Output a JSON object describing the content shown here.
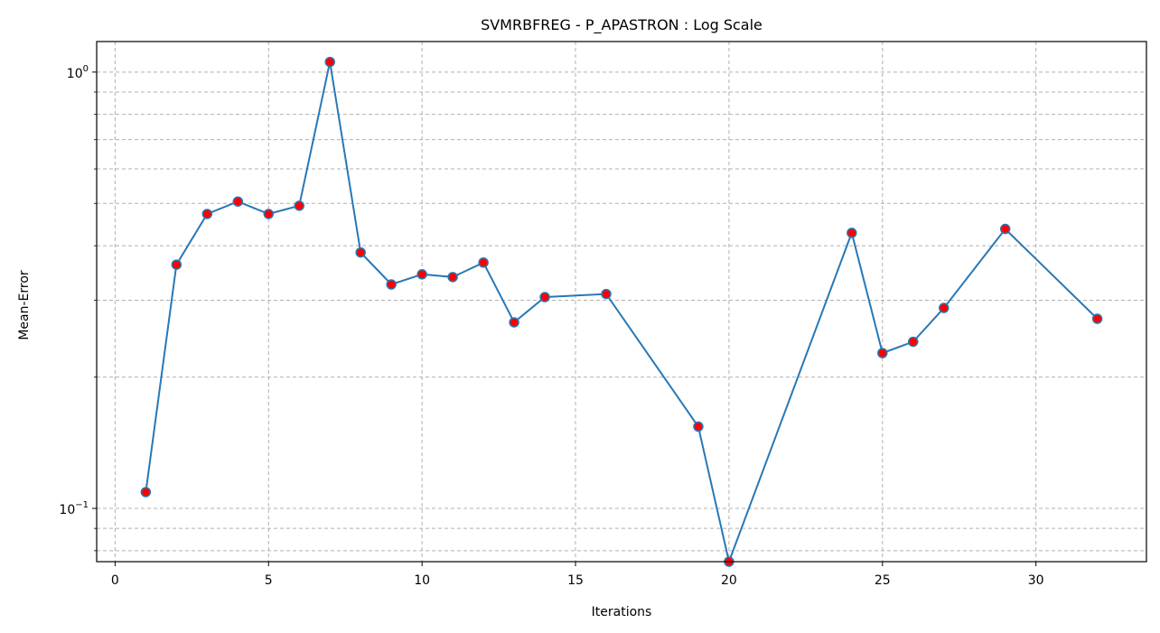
{
  "chart_data": {
    "type": "line",
    "title": "SVMRBFREG - P_APASTRON : Log Scale",
    "xlabel": "Iterations",
    "ylabel": "Mean-Error",
    "yscale": "log",
    "xlim": [
      -0.6,
      33.6
    ],
    "ylim": [
      0.0755,
      1.175
    ],
    "grid": true,
    "line_color": "#2878b5",
    "marker_color": "#ff0000",
    "marker_edge_color": "#2878b5",
    "x_ticks": [
      0,
      5,
      10,
      15,
      20,
      25,
      30
    ],
    "x_tick_labels": [
      "0",
      "5",
      "10",
      "15",
      "20",
      "25",
      "30"
    ],
    "y_major_ticks": [
      0.1,
      1
    ],
    "y_major_labels": [
      "10",
      "10"
    ],
    "y_major_label_exponents": [
      "−1",
      "0"
    ],
    "y_minor_ticks": [
      0.08,
      0.09,
      0.2,
      0.3,
      0.4,
      0.5,
      0.6,
      0.7,
      0.8,
      0.9
    ],
    "series": [
      {
        "x": [
          1,
          2,
          3,
          4,
          5,
          6,
          7,
          8,
          9,
          10,
          11,
          12,
          13,
          14,
          16,
          19,
          20,
          24,
          25,
          26,
          27,
          29,
          32
        ],
        "y": [
          0.109,
          0.362,
          0.473,
          0.505,
          0.473,
          0.494,
          1.055,
          0.386,
          0.326,
          0.344,
          0.339,
          0.366,
          0.267,
          0.305,
          0.31,
          0.154,
          0.0755,
          0.428,
          0.227,
          0.241,
          0.288,
          0.437,
          0.272
        ]
      }
    ]
  }
}
